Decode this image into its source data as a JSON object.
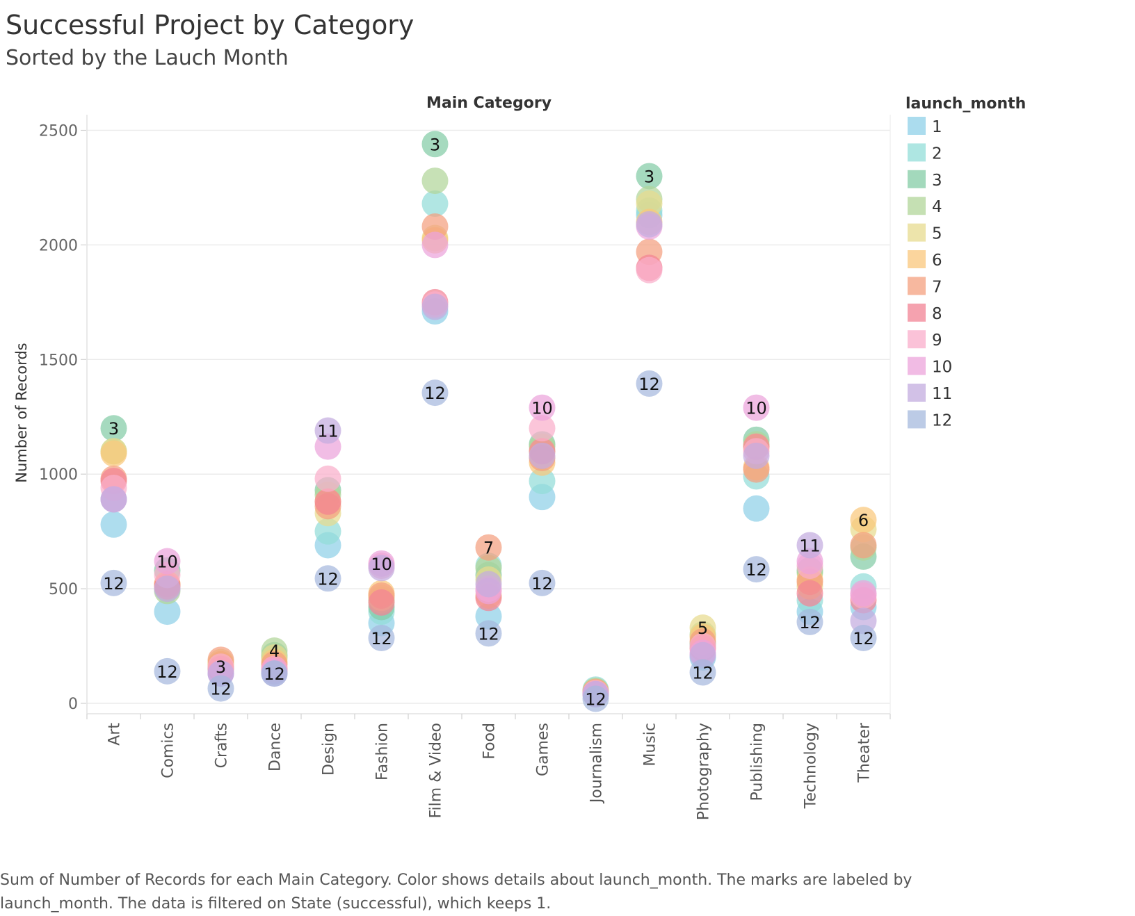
{
  "title": "Successful Project by Category",
  "subtitle": "Sorted by the Lauch Month",
  "caption": "Sum of Number of Records for each Main Category.  Color shows details about launch_month.  The marks are labeled by launch_month. The data is filtered on State (successful), which keeps 1.",
  "chart_data": {
    "type": "scatter",
    "column_header": "Main Category",
    "ylabel": "Number of Records",
    "ylim": [
      0,
      2650
    ],
    "yticks": [
      0,
      500,
      1000,
      1500,
      2000,
      2500
    ],
    "grid": true,
    "categories": [
      "Art",
      "Comics",
      "Crafts",
      "Dance",
      "Design",
      "Fashion",
      "Film & Video",
      "Food",
      "Games",
      "Journalism",
      "Music",
      "Photography",
      "Publishing",
      "Technology",
      "Theater"
    ],
    "legend": {
      "title": "launch_month",
      "position": "right",
      "items": [
        "1",
        "2",
        "3",
        "4",
        "5",
        "6",
        "7",
        "8",
        "9",
        "10",
        "11",
        "12"
      ]
    },
    "colors": {
      "1": "#8fd0e8",
      "2": "#93ddd8",
      "3": "#84cca6",
      "4": "#b2d59a",
      "5": "#e7db8f",
      "6": "#f9c77c",
      "7": "#f4a07f",
      "8": "#f28394",
      "9": "#f9aecb",
      "10": "#eca4db",
      "11": "#c3acdf",
      "12": "#a6b9de"
    },
    "series": [
      {
        "name": "1",
        "values": [
          780,
          400,
          130,
          140,
          690,
          350,
          1710,
          380,
          900,
          45,
          2130,
          200,
          850,
          400,
          420
        ]
      },
      {
        "name": "2",
        "values": [
          890,
          500,
          150,
          200,
          750,
          400,
          2180,
          600,
          970,
          60,
          2150,
          250,
          990,
          450,
          510
        ]
      },
      {
        "name": "3",
        "values": [
          1200,
          580,
          160,
          210,
          930,
          420,
          2440,
          560,
          1130,
          50,
          2300,
          260,
          1150,
          580,
          640
        ]
      },
      {
        "name": "4",
        "values": [
          1100,
          490,
          170,
          230,
          910,
          450,
          2280,
          590,
          1120,
          55,
          2200,
          300,
          1130,
          570,
          680
        ]
      },
      {
        "name": "5",
        "values": [
          1100,
          510,
          180,
          200,
          830,
          460,
          2030,
          540,
          1100,
          50,
          2180,
          330,
          1120,
          510,
          760
        ]
      },
      {
        "name": "6",
        "values": [
          1090,
          520,
          170,
          180,
          880,
          480,
          2020,
          470,
          1050,
          45,
          2100,
          290,
          1030,
          540,
          800
        ]
      },
      {
        "name": "7",
        "values": [
          980,
          520,
          190,
          170,
          860,
          470,
          2080,
          680,
          1070,
          50,
          1970,
          270,
          1020,
          530,
          690
        ]
      },
      {
        "name": "8",
        "values": [
          970,
          510,
          150,
          150,
          880,
          440,
          1750,
          460,
          1100,
          40,
          1900,
          240,
          1120,
          480,
          450
        ]
      },
      {
        "name": "9",
        "values": [
          940,
          560,
          160,
          150,
          980,
          600,
          1740,
          500,
          1200,
          45,
          1890,
          250,
          1100,
          600,
          470
        ]
      },
      {
        "name": "10",
        "values": [
          890,
          620,
          130,
          140,
          1120,
          610,
          2000,
          490,
          1290,
          40,
          2080,
          220,
          1290,
          620,
          480
        ]
      },
      {
        "name": "11",
        "values": [
          890,
          500,
          130,
          130,
          1190,
          590,
          1730,
          520,
          1080,
          40,
          2090,
          210,
          1080,
          690,
          360
        ]
      },
      {
        "name": "12",
        "values": [
          525,
          140,
          65,
          130,
          545,
          285,
          1355,
          305,
          525,
          20,
          1395,
          135,
          585,
          355,
          285
        ]
      }
    ],
    "data_labels": [
      {
        "category": "Art",
        "month": "3",
        "value": 1200
      },
      {
        "category": "Art",
        "month": "12",
        "value": 525
      },
      {
        "category": "Comics",
        "month": "10",
        "value": 620
      },
      {
        "category": "Comics",
        "month": "12",
        "value": 140
      },
      {
        "category": "Crafts",
        "month": "3",
        "value": 160
      },
      {
        "category": "Crafts",
        "month": "12",
        "value": 65
      },
      {
        "category": "Dance",
        "month": "4",
        "value": 230
      },
      {
        "category": "Dance",
        "month": "12",
        "value": 130
      },
      {
        "category": "Design",
        "month": "11",
        "value": 1190
      },
      {
        "category": "Design",
        "month": "12",
        "value": 545
      },
      {
        "category": "Fashion",
        "month": "10",
        "value": 610
      },
      {
        "category": "Fashion",
        "month": "12",
        "value": 285
      },
      {
        "category": "Film & Video",
        "month": "3",
        "value": 2440
      },
      {
        "category": "Film & Video",
        "month": "12",
        "value": 1355
      },
      {
        "category": "Food",
        "month": "7",
        "value": 680
      },
      {
        "category": "Food",
        "month": "12",
        "value": 305
      },
      {
        "category": "Games",
        "month": "10",
        "value": 1290
      },
      {
        "category": "Games",
        "month": "12",
        "value": 525
      },
      {
        "category": "Journalism",
        "month": "12",
        "value": 20
      },
      {
        "category": "Music",
        "month": "3",
        "value": 2300
      },
      {
        "category": "Music",
        "month": "12",
        "value": 1395
      },
      {
        "category": "Photography",
        "month": "5",
        "value": 330
      },
      {
        "category": "Photography",
        "month": "12",
        "value": 135
      },
      {
        "category": "Publishing",
        "month": "10",
        "value": 1290
      },
      {
        "category": "Publishing",
        "month": "12",
        "value": 585
      },
      {
        "category": "Technology",
        "month": "11",
        "value": 690
      },
      {
        "category": "Technology",
        "month": "12",
        "value": 355
      },
      {
        "category": "Theater",
        "month": "6",
        "value": 800
      },
      {
        "category": "Theater",
        "month": "12",
        "value": 285
      }
    ]
  }
}
